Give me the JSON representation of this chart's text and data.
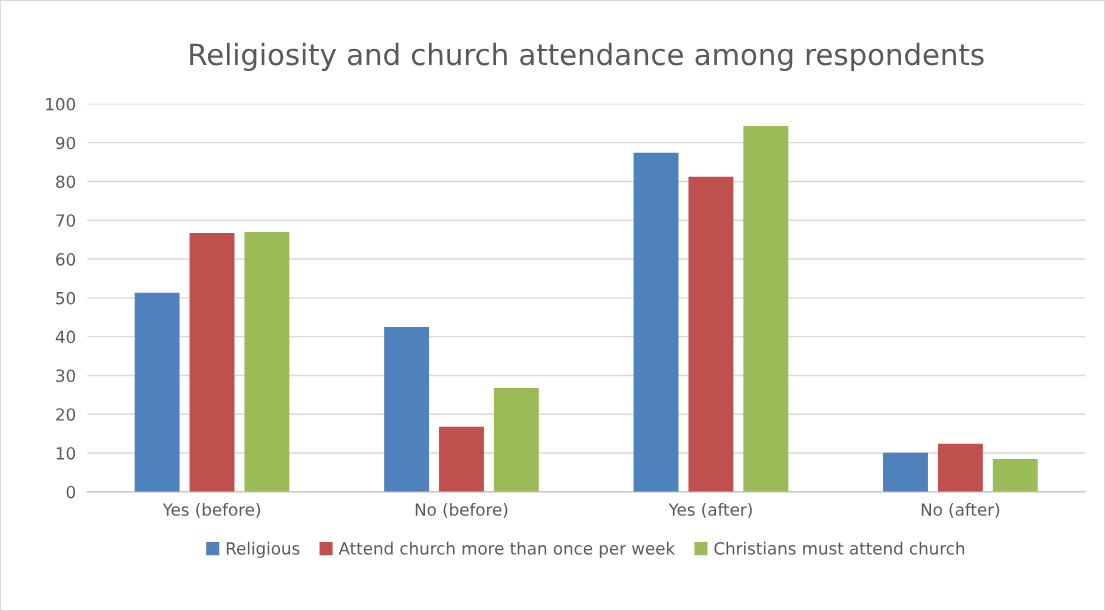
{
  "chart_data": {
    "type": "bar",
    "title": "Religiosity and church attendance among respondents",
    "categories": [
      "Yes (before)",
      "No (before)",
      "Yes (after)",
      "No (after)"
    ],
    "series": [
      {
        "name": "Religious",
        "color": "#4f81bd",
        "values": [
          51.3,
          42.5,
          87.4,
          10.1
        ]
      },
      {
        "name": "Attend church more than once per week",
        "color": "#c0504d",
        "values": [
          66.7,
          16.8,
          81.2,
          12.4
        ]
      },
      {
        "name": "Christians must attend church",
        "color": "#9bbb59",
        "values": [
          67.0,
          26.8,
          94.3,
          8.5
        ]
      }
    ],
    "ylim": [
      0,
      100
    ],
    "yticks": [
      0,
      10,
      20,
      30,
      40,
      50,
      60,
      70,
      80,
      90,
      100
    ],
    "grid": "y",
    "legend": "bottom"
  }
}
